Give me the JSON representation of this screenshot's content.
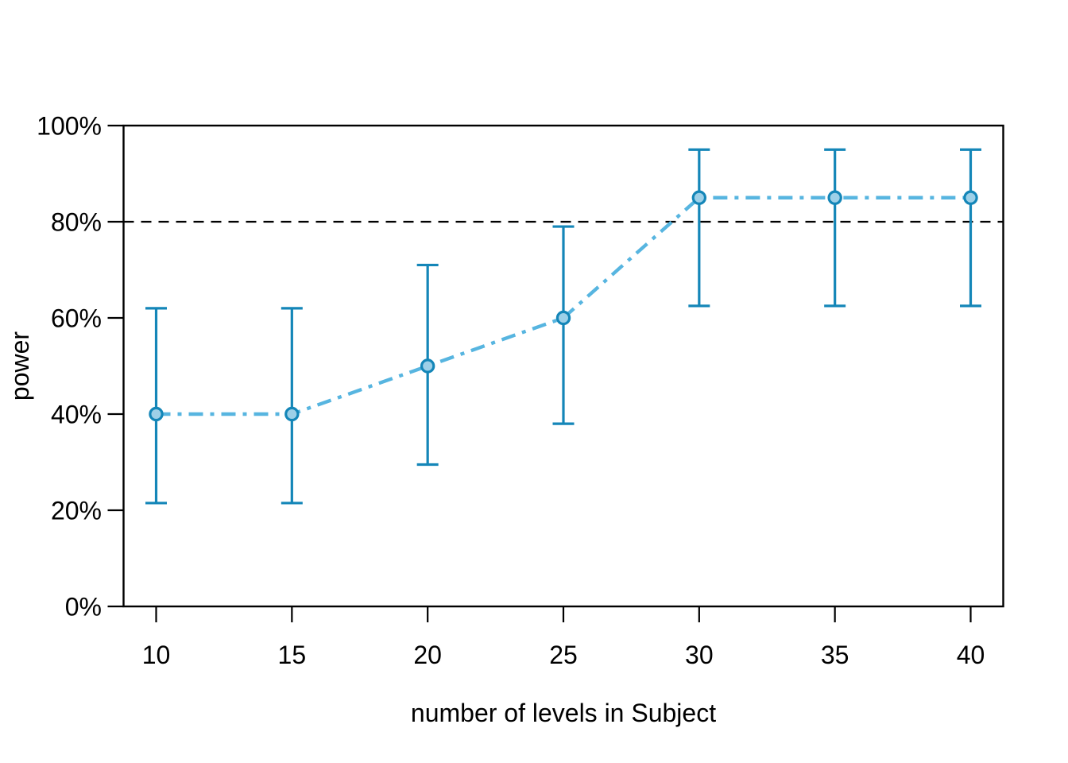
{
  "chart_data": {
    "type": "line",
    "title": "",
    "xlabel": "number of levels in Subject",
    "ylabel": "power",
    "x": [
      10,
      15,
      20,
      25,
      30,
      35,
      40
    ],
    "series": [
      {
        "name": "power",
        "values": [
          40,
          40,
          50,
          60,
          85,
          85,
          85
        ],
        "ci_lower": [
          21.5,
          21.5,
          29.5,
          38,
          62.5,
          62.5,
          62.5
        ],
        "ci_upper": [
          62,
          62,
          71,
          79,
          95,
          95,
          95
        ]
      }
    ],
    "x_ticks": [
      "10",
      "15",
      "20",
      "25",
      "30",
      "35",
      "40"
    ],
    "y_ticks": [
      "0%",
      "20%",
      "40%",
      "60%",
      "80%",
      "100%"
    ],
    "y_tick_values": [
      0,
      20,
      40,
      60,
      80,
      100
    ],
    "xlim": [
      8.8,
      41.2
    ],
    "ylim": [
      0,
      100
    ],
    "threshold": {
      "value": 80,
      "style": "dashed",
      "color": "#000000"
    },
    "grid": false,
    "legend": null,
    "line_style": "dotdash",
    "marker": "circle",
    "colors": {
      "line": "#57b5e0",
      "error_bar": "#1486b8",
      "marker_fill": "#9dd0e8",
      "marker_stroke": "#1486b8",
      "axis": "#000000",
      "text": "#000000",
      "background": "#ffffff"
    }
  }
}
